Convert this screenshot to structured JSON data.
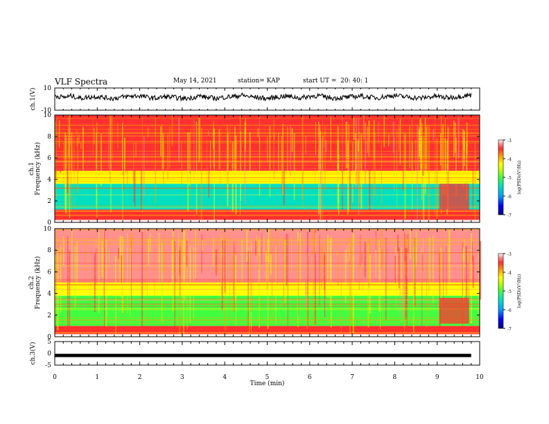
{
  "header": {
    "title": "VLF Spectra",
    "date": "May 14, 2021",
    "station": "station= KAP",
    "start": "start UT =  20: 40: 1"
  },
  "chart_data": [
    {
      "type": "line",
      "panel": "ch.1 waveform",
      "ylabel": "ch.1(V)",
      "ylim": [
        -10,
        10
      ],
      "yticks": [
        "10",
        "-10"
      ],
      "xlim": [
        0,
        10
      ],
      "series": [
        {
          "values_description_free": true,
          "values": [
            3.2,
            1.5,
            2.8,
            0.9,
            1.7,
            2.4,
            1.1,
            0.6,
            1.9,
            2.6,
            3.0,
            1.4,
            0.8,
            2.2,
            1.6,
            0.4,
            1.0,
            2.9,
            1.2,
            0.7,
            1.8,
            2.3,
            3.4,
            2.1,
            1.3,
            0.5,
            1.5,
            2.7,
            1.9,
            1.0,
            2.5,
            3.1,
            1.6,
            0.9,
            1.4,
            2.0,
            2.8,
            1.7,
            1.1,
            2.4,
            3.3,
            2.2,
            1.5,
            0.8,
            1.9,
            2.6,
            1.2,
            1.8,
            2.9,
            3.5
          ]
        }
      ]
    },
    {
      "type": "heatmap",
      "panel": "ch.1 spectrogram",
      "ylabel": "ch.1 Frequency (kHz)",
      "ylim": [
        0,
        10
      ],
      "yticks": [
        "0",
        "2",
        "4",
        "6",
        "8",
        "10"
      ],
      "xlim": [
        0,
        10
      ],
      "colorbar": {
        "label": "log(PSD)(V²/Hz)",
        "ticks": [
          "-3",
          "-4",
          "-5",
          "-6",
          "-7"
        ],
        "range": [
          -7,
          -3
        ]
      },
      "bands_khz": [
        {
          "from": 0.2,
          "to": 1.2,
          "level": -3.3
        },
        {
          "from": 1.2,
          "to": 3.6,
          "level": -5.2
        },
        {
          "from": 3.6,
          "to": 4.8,
          "level": -4.2
        },
        {
          "from": 4.8,
          "to": 10,
          "level": -3.4
        }
      ]
    },
    {
      "type": "heatmap",
      "panel": "ch.2 spectrogram",
      "ylabel": "ch.2 Frequency (kHz)",
      "ylim": [
        0,
        10
      ],
      "yticks": [
        "0",
        "2",
        "4",
        "6",
        "8",
        "10"
      ],
      "xlim": [
        0,
        10
      ],
      "colorbar": {
        "label": "log(PSD)(V²/Hz)",
        "ticks": [
          "-3",
          "-4",
          "-5",
          "-6",
          "-7"
        ],
        "range": [
          -7,
          -3
        ]
      },
      "bands_khz": [
        {
          "from": 0.2,
          "to": 1.0,
          "level": -3.5
        },
        {
          "from": 1.0,
          "to": 3.8,
          "level": -5.0
        },
        {
          "from": 3.8,
          "to": 5.0,
          "level": -4.0
        },
        {
          "from": 5.0,
          "to": 10,
          "level": -3.2
        }
      ]
    },
    {
      "type": "line",
      "panel": "ch.3 signal",
      "ylabel": "ch.3(V)",
      "ylim": [
        -5,
        5
      ],
      "yticks": [
        "5",
        "0",
        "-5"
      ],
      "xlim": [
        0,
        10
      ],
      "xlabel": "Time (min)",
      "xticks": [
        "0",
        "1",
        "2",
        "3",
        "4",
        "5",
        "6",
        "7",
        "8",
        "9",
        "10"
      ],
      "series": [
        {
          "values": [
            -1,
            -1
          ]
        }
      ]
    }
  ],
  "colors": {
    "scale": [
      "#000080",
      "#0000ff",
      "#00a0ff",
      "#00e0c0",
      "#40ff40",
      "#c0ff00",
      "#ffff00",
      "#ffa000",
      "#ff4040",
      "#ff9090",
      "#ffffff"
    ]
  }
}
